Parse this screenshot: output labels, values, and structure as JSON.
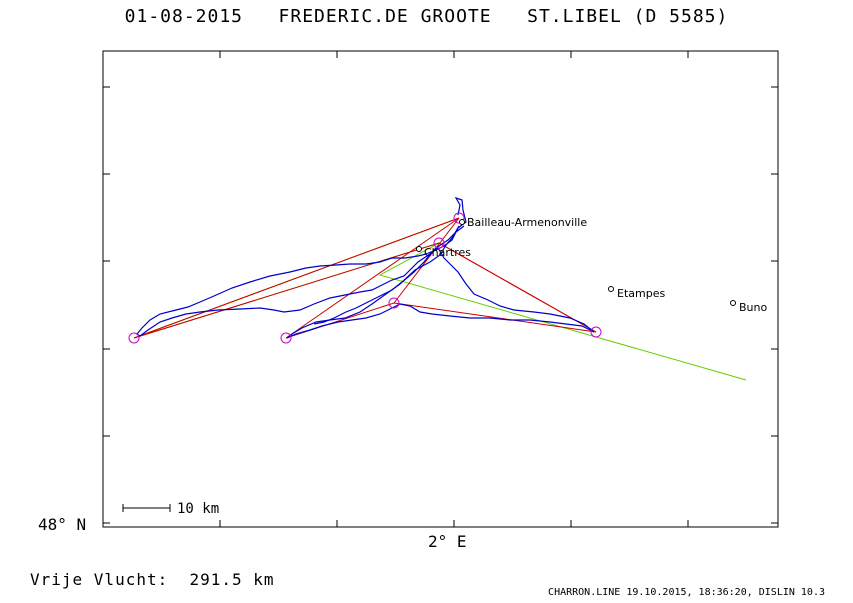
{
  "header": {
    "date": "01-08-2015",
    "pilot": "FREDERIC.DE GROOTE",
    "glider": "ST.LIBEL (D 5585)"
  },
  "axes": {
    "lat_label": "48° N",
    "lon_label": "2° E"
  },
  "scale": {
    "label": "10 km"
  },
  "places": [
    {
      "name": "Bailleau-Armenonville"
    },
    {
      "name": "Chartres"
    },
    {
      "name": "Etampes"
    },
    {
      "name": "Buno"
    }
  ],
  "flight": {
    "distance_label": "Vrije Vlucht:",
    "distance_value": "291.5 km"
  },
  "footer": {
    "text": "CHARRON.LINE 19.10.2015, 18:36:20, DISLIN 10.3"
  },
  "colors": {
    "track": "#0000cc",
    "task_line": "#cc0000",
    "optimised_line": "#66cc00",
    "turnpoint": "#cc00cc",
    "frame": "#000000"
  }
}
